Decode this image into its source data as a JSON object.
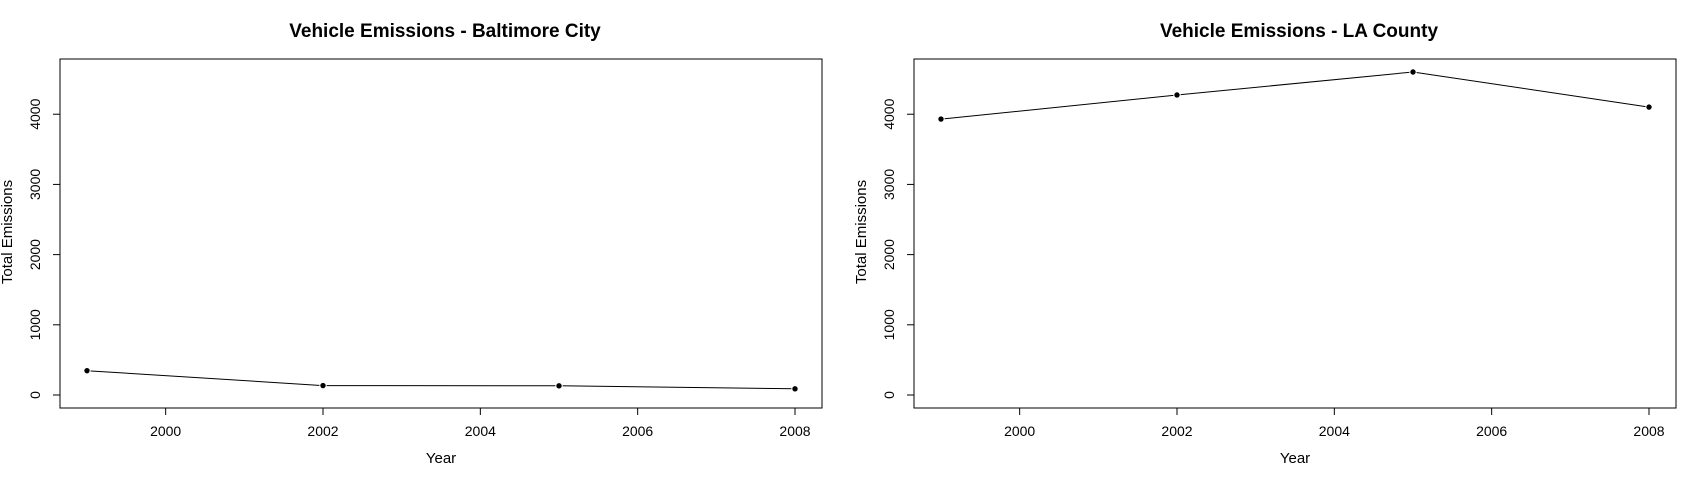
{
  "chart_data": [
    {
      "type": "line",
      "title": "Vehicle Emissions - Baltimore City",
      "xlabel": "Year",
      "ylabel": "Total Emissions",
      "x": [
        1999,
        2002,
        2005,
        2008
      ],
      "series": [
        {
          "values": [
            346.8,
            134.3,
            130.4,
            88.3
          ]
        }
      ],
      "xlim": [
        1999,
        2008
      ],
      "ylim": [
        0,
        4601.4
      ],
      "xticks": [
        "2000",
        "2002",
        "2004",
        "2006",
        "2008"
      ],
      "yticks": [
        "0",
        "1000",
        "2000",
        "3000",
        "4000"
      ],
      "grid": false,
      "colors": {
        "line": "#000000",
        "points": "#000000"
      }
    },
    {
      "type": "line",
      "title": "Vehicle Emissions - LA County",
      "xlabel": "Year",
      "ylabel": "Total Emissions",
      "x": [
        1999,
        2002,
        2005,
        2008
      ],
      "series": [
        {
          "values": [
            3931.1,
            4274.0,
            4601.4,
            4101.3
          ]
        }
      ],
      "xlim": [
        1999,
        2008
      ],
      "ylim": [
        0,
        4601.4
      ],
      "xticks": [
        "2000",
        "2002",
        "2004",
        "2006",
        "2008"
      ],
      "yticks": [
        "0",
        "1000",
        "2000",
        "3000",
        "4000"
      ],
      "grid": false,
      "colors": {
        "line": "#000000",
        "points": "#000000"
      }
    }
  ]
}
